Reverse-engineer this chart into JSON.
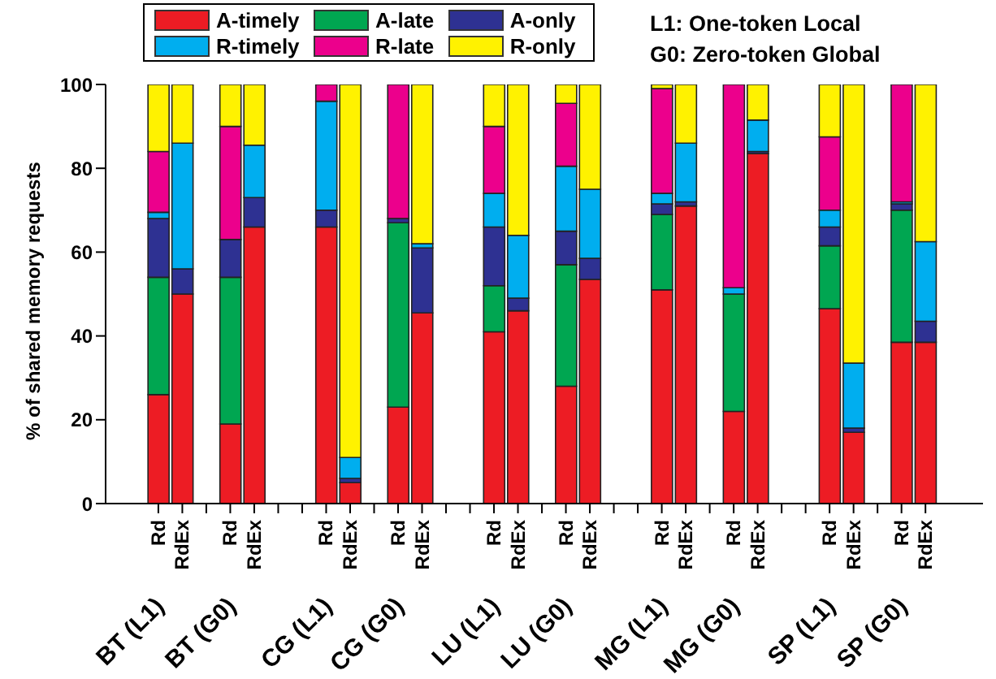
{
  "chart_data": {
    "type": "bar",
    "stacked": true,
    "ylabel": "% of shared memory requests",
    "ylim": [
      0,
      100
    ],
    "yticks": [
      0,
      20,
      40,
      60,
      80,
      100
    ],
    "grid": false,
    "legend": "top",
    "categories": [
      "Rd",
      "RdEx",
      null,
      "Rd",
      "RdEx",
      null,
      null,
      "Rd",
      "RdEx",
      null,
      "Rd",
      "RdEx",
      null,
      null,
      "Rd",
      "RdEx",
      null,
      "Rd",
      "RdEx",
      null,
      null,
      "Rd",
      "RdEx",
      null,
      "Rd",
      "RdEx",
      null,
      null,
      "Rd",
      "RdEx",
      null,
      "Rd",
      "RdEx"
    ],
    "series": [
      {
        "name": "A-timely",
        "color": "#ed1c24",
        "values": [
          26,
          50,
          null,
          19,
          66,
          null,
          null,
          66,
          5,
          null,
          23,
          45.5,
          null,
          null,
          41,
          46,
          null,
          28,
          53.5,
          null,
          null,
          51,
          71,
          null,
          22,
          83.5,
          null,
          null,
          46.5,
          17,
          null,
          38.5,
          38.5
        ]
      },
      {
        "name": "A-late",
        "color": "#00a651",
        "values": [
          28,
          0,
          null,
          35,
          0,
          null,
          null,
          0,
          0,
          null,
          44,
          0,
          null,
          null,
          11,
          0,
          null,
          29,
          0,
          null,
          null,
          18,
          0,
          null,
          28,
          0,
          null,
          null,
          15,
          0,
          null,
          31.5,
          0
        ]
      },
      {
        "name": "A-only",
        "color": "#2e3192",
        "values": [
          14,
          6,
          null,
          9,
          7,
          null,
          null,
          4,
          1,
          null,
          1,
          15.5,
          null,
          null,
          14,
          3,
          null,
          8,
          5,
          null,
          null,
          2.5,
          1,
          null,
          0,
          0.5,
          null,
          null,
          4.5,
          1,
          null,
          1.5,
          5
        ]
      },
      {
        "name": "R-timely",
        "color": "#00aeef",
        "values": [
          1.5,
          30,
          null,
          0,
          12.5,
          null,
          null,
          26,
          5,
          null,
          0,
          1,
          null,
          null,
          8,
          15,
          null,
          15.5,
          16.5,
          null,
          null,
          2.5,
          14,
          null,
          1.5,
          7.5,
          null,
          null,
          4,
          15.5,
          null,
          0.5,
          19
        ]
      },
      {
        "name": "R-late",
        "color": "#ec008c",
        "values": [
          14.5,
          0,
          null,
          27,
          0,
          null,
          null,
          4,
          0,
          null,
          32,
          0,
          null,
          null,
          16,
          0,
          null,
          15,
          0,
          null,
          null,
          25,
          0,
          null,
          48.5,
          0,
          null,
          null,
          17.5,
          0,
          null,
          28,
          0
        ]
      },
      {
        "name": "R-only",
        "color": "#fff200",
        "values": [
          16,
          14,
          null,
          10,
          14.5,
          null,
          null,
          0,
          89,
          null,
          0,
          38,
          null,
          null,
          10,
          36,
          null,
          4.5,
          25,
          null,
          null,
          1,
          14,
          null,
          0,
          8.5,
          null,
          null,
          12.5,
          66.5,
          null,
          0,
          37.5
        ]
      }
    ],
    "annotations": [
      "L1: One-token Local",
      "G0: Zero-token Global",
      "BT (L1)",
      "BT (G0)",
      "CG (L1)",
      "CG (G0)",
      "LU (L1)",
      "LU (G0)",
      "MG (L1)",
      "MG (G0)",
      "SP (L1)",
      "SP (G0)"
    ]
  }
}
